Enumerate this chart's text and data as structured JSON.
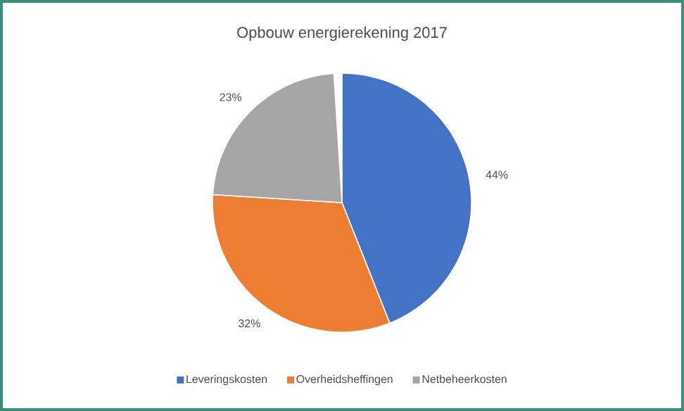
{
  "chart_data": {
    "type": "pie",
    "title": "Opbouw energierekening 2017",
    "categories": [
      "Leveringskosten",
      "Overheidsheffingen",
      "Netbeheerkosten"
    ],
    "values": [
      44,
      32,
      23
    ],
    "value_labels": [
      "44%",
      "32%",
      "23%"
    ],
    "colors": [
      "#4472c4",
      "#ed7d31",
      "#a5a5a5"
    ],
    "legend": "bottom"
  }
}
